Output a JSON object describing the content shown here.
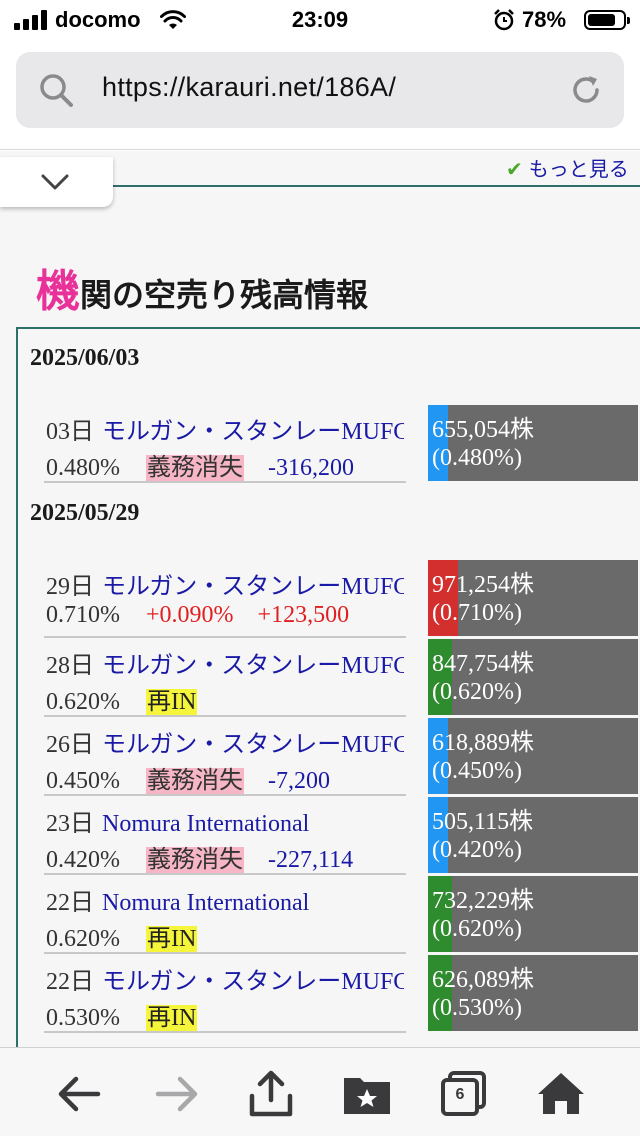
{
  "status_bar": {
    "carrier": "docomo",
    "time": "23:09",
    "battery": "78%",
    "battery_level": 0.78
  },
  "browser": {
    "url": "https://karauri.net/186A/",
    "tab_count": "6"
  },
  "page": {
    "more_link": "もっと見る",
    "section_title_first": "機",
    "section_title_rest": "関の空売り残高情報",
    "colors": {
      "accent_pink": "#e8329a",
      "frame": "#2f6f6a",
      "link": "#1a1aa6",
      "increase": "#e02020",
      "bar_blue": "#2196f3",
      "bar_red": "#d32f2f",
      "bar_green": "#2e8b2e",
      "bar_bg": "#6a6a6a"
    },
    "groups": [
      {
        "date": "2025/06/03",
        "rows": [
          {
            "day": "03日",
            "institution": "モルガン・スタンレーMUFG",
            "ratio": "0.480%",
            "badge": "義務消失",
            "badge_type": "pink",
            "change": "-316,200",
            "change_type": "neg",
            "shares": "655,054株",
            "share_ratio": "(0.480%)",
            "bar_color": "blue"
          }
        ]
      },
      {
        "date": "2025/05/29",
        "rows": [
          {
            "day": "29日",
            "institution": "モルガン・スタンレーMUFG",
            "ratio": "0.710%",
            "badge": "+0.090%",
            "badge_type": "pos",
            "change": "+123,500",
            "change_type": "pos",
            "shares": "971,254株",
            "share_ratio": "(0.710%)",
            "bar_color": "red"
          },
          {
            "day": "28日",
            "institution": "モルガン・スタンレーMUFG",
            "ratio": "0.620%",
            "badge": "再IN",
            "badge_type": "yellow",
            "change": "",
            "change_type": "",
            "shares": "847,754株",
            "share_ratio": "(0.620%)",
            "bar_color": "green"
          },
          {
            "day": "26日",
            "institution": "モルガン・スタンレーMUFG",
            "ratio": "0.450%",
            "badge": "義務消失",
            "badge_type": "pink",
            "change": "-7,200",
            "change_type": "neg",
            "shares": "618,889株",
            "share_ratio": "(0.450%)",
            "bar_color": "blue"
          },
          {
            "day": "23日",
            "institution": "Nomura International",
            "ratio": "0.420%",
            "badge": "義務消失",
            "badge_type": "pink",
            "change": "-227,114",
            "change_type": "neg",
            "shares": "505,115株",
            "share_ratio": "(0.420%)",
            "bar_color": "blue"
          },
          {
            "day": "22日",
            "institution": "Nomura International",
            "ratio": "0.620%",
            "badge": "再IN",
            "badge_type": "yellow",
            "change": "",
            "change_type": "",
            "shares": "732,229株",
            "share_ratio": "(0.620%)",
            "bar_color": "green"
          },
          {
            "day": "22日",
            "institution": "モルガン・スタンレーMUFG",
            "ratio": "0.530%",
            "badge": "再IN",
            "badge_type": "yellow",
            "change": "",
            "change_type": "",
            "shares": "626,089株",
            "share_ratio": "(0.530%)",
            "bar_color": "green"
          }
        ]
      }
    ]
  }
}
